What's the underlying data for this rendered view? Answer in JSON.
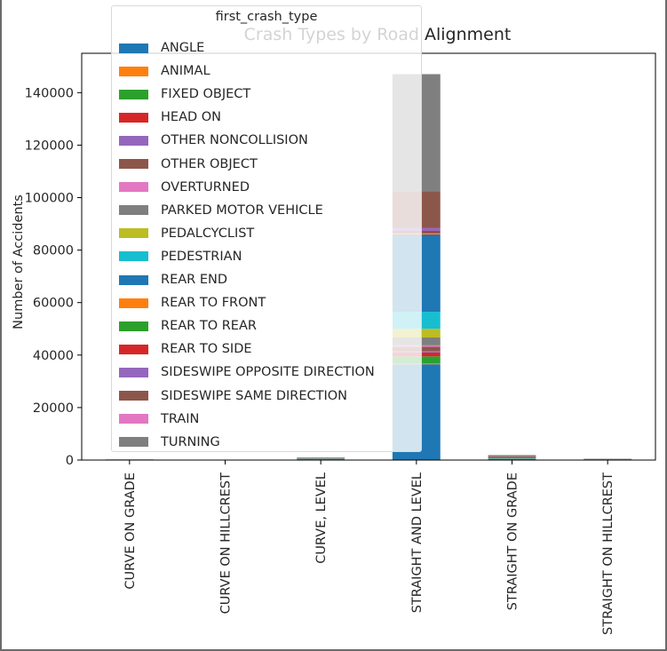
{
  "chart_data": {
    "type": "bar",
    "stacked": true,
    "title": "Crash Types by Road Alignment",
    "xlabel": "",
    "ylabel": "Number of Accidents",
    "ylim": [
      0,
      155000
    ],
    "yticks": [
      0,
      20000,
      40000,
      60000,
      80000,
      100000,
      120000,
      140000
    ],
    "grid": false,
    "legend": {
      "title": "first_crash_type",
      "placement": "top-left"
    },
    "categories": [
      "CURVE ON GRADE",
      "CURVE ON HILLCREST",
      "CURVE, LEVEL",
      "STRAIGHT AND LEVEL",
      "STRAIGHT ON GRADE",
      "STRAIGHT ON HILLCREST"
    ],
    "series": [
      {
        "name": "ANGLE",
        "color": "#1f77b4",
        "values": [
          40,
          10,
          120,
          36500,
          350,
          100
        ]
      },
      {
        "name": "ANIMAL",
        "color": "#ff7f0e",
        "values": [
          2,
          0,
          10,
          300,
          10,
          2
        ]
      },
      {
        "name": "FIXED OBJECT",
        "color": "#2ca02c",
        "values": [
          60,
          10,
          300,
          2700,
          100,
          20
        ]
      },
      {
        "name": "HEAD ON",
        "color": "#d62728",
        "values": [
          5,
          1,
          20,
          1500,
          20,
          5
        ]
      },
      {
        "name": "OTHER NONCOLLISION",
        "color": "#9467bd",
        "values": [
          3,
          0,
          15,
          500,
          10,
          2
        ]
      },
      {
        "name": "OTHER OBJECT",
        "color": "#8c564b",
        "values": [
          5,
          1,
          20,
          1700,
          20,
          5
        ]
      },
      {
        "name": "OVERTURNED",
        "color": "#e377c2",
        "values": [
          3,
          0,
          10,
          500,
          10,
          2
        ]
      },
      {
        "name": "PARKED MOTOR VEHICLE",
        "color": "#7f7f7f",
        "values": [
          20,
          5,
          80,
          3000,
          100,
          20
        ]
      },
      {
        "name": "PEDALCYCLIST",
        "color": "#bcbd22",
        "values": [
          5,
          1,
          20,
          3300,
          30,
          10
        ]
      },
      {
        "name": "PEDESTRIAN",
        "color": "#17becf",
        "values": [
          5,
          1,
          20,
          6500,
          60,
          10
        ]
      },
      {
        "name": "REAR END",
        "color": "#1f77b4",
        "values": [
          30,
          5,
          100,
          29500,
          350,
          100
        ]
      },
      {
        "name": "REAR TO FRONT",
        "color": "#ff7f0e",
        "values": [
          1,
          0,
          2,
          300,
          5,
          1
        ]
      },
      {
        "name": "REAR TO REAR",
        "color": "#2ca02c",
        "values": [
          1,
          0,
          2,
          300,
          5,
          1
        ]
      },
      {
        "name": "REAR TO SIDE",
        "color": "#d62728",
        "values": [
          1,
          0,
          5,
          700,
          10,
          2
        ]
      },
      {
        "name": "SIDESWIPE OPPOSITE DIRECTION",
        "color": "#9467bd",
        "values": [
          5,
          1,
          20,
          1200,
          20,
          5
        ]
      },
      {
        "name": "SIDESWIPE SAME DIRECTION",
        "color": "#8c564b",
        "values": [
          30,
          5,
          100,
          14000,
          300,
          60
        ]
      },
      {
        "name": "TRAIN",
        "color": "#e377c2",
        "values": [
          0,
          0,
          1,
          50,
          2,
          0
        ]
      },
      {
        "name": "TURNING",
        "color": "#7f7f7f",
        "values": [
          40,
          10,
          150,
          44500,
          500,
          150
        ]
      }
    ]
  }
}
